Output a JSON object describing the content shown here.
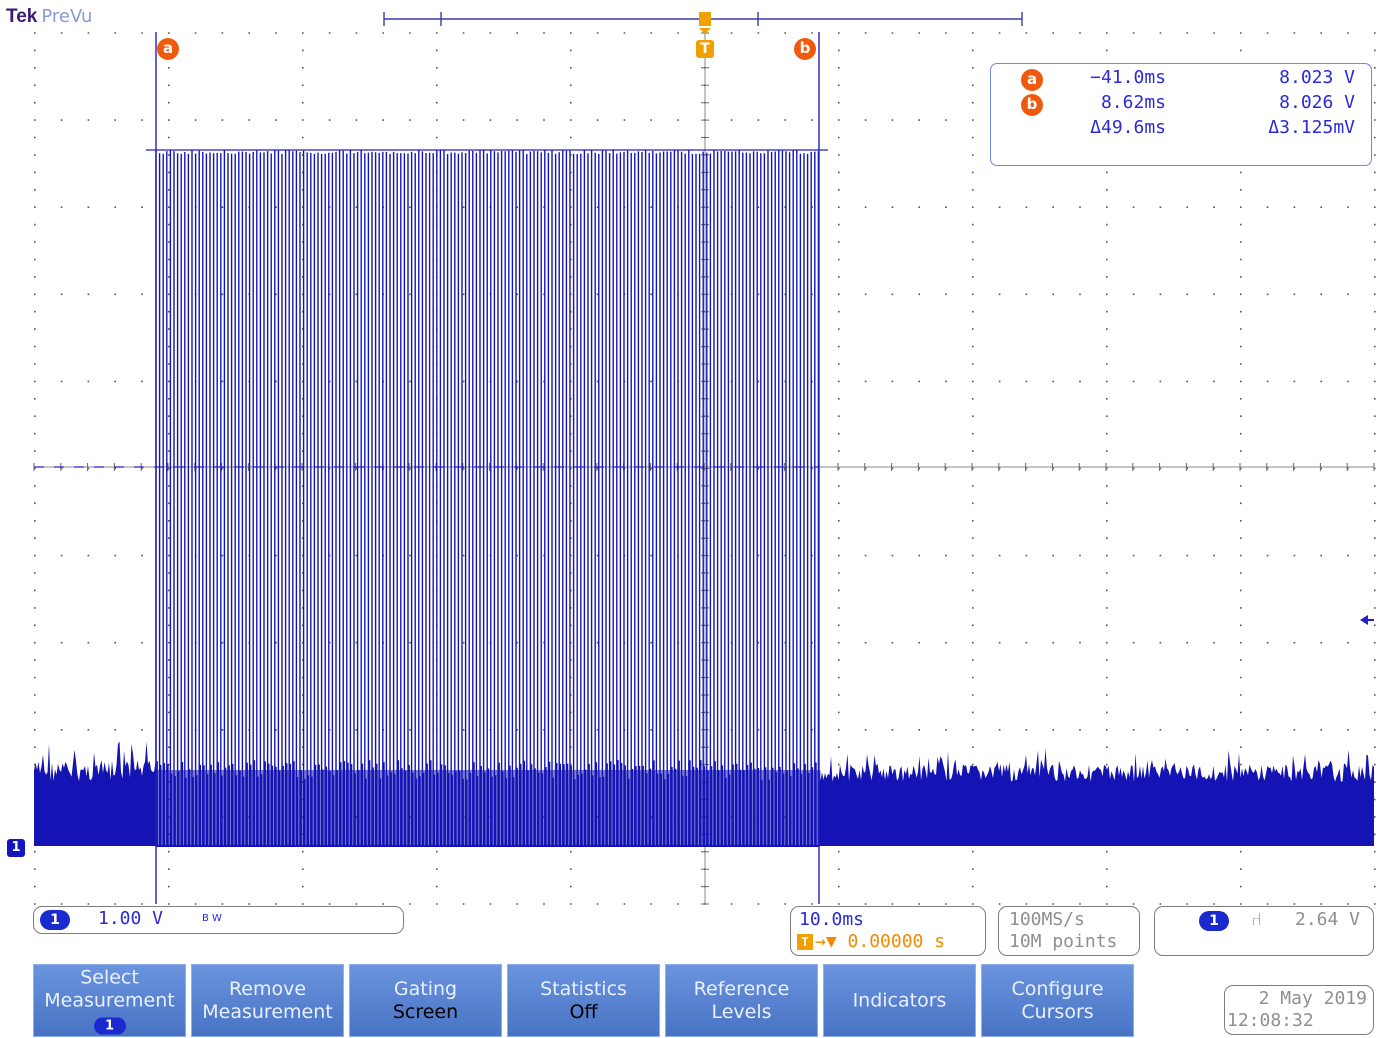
{
  "brand": {
    "make": "Tek",
    "mode": "PreVu"
  },
  "colors": {
    "trace": "#1414b4",
    "cursor_line": "#2020c8",
    "cursor_badge": "#f05a0e",
    "trigger": "#f0a000",
    "grid": "#555555",
    "menu": "#5580d0"
  },
  "cursors": {
    "a": {
      "label": "a",
      "time": "−41.0ms",
      "value": "8.023 V"
    },
    "b": {
      "label": "b",
      "time": "8.62ms",
      "value": "8.026 V"
    },
    "delta": {
      "time": "Δ49.6ms",
      "value": "Δ3.125mV"
    }
  },
  "trigger_marker": "T",
  "channel": {
    "number": "1",
    "volts_per_div": "1.00 V",
    "bandwidth_flag": "B W"
  },
  "timebase": {
    "per_div": "10.0ms",
    "trigger_pos": "0.00000 s",
    "trigger_pos_arrow": "→▼"
  },
  "acquisition": {
    "sample_rate": "100MS/s",
    "record_length": "10M points"
  },
  "trigger": {
    "source": "1",
    "slope": "⑁",
    "level": "2.64 V"
  },
  "menu": [
    {
      "line1": "Select",
      "line2": "Measurement",
      "badge": "1"
    },
    {
      "line1": "Remove",
      "line2": "Measurement"
    },
    {
      "line1": "Gating",
      "value": "Screen"
    },
    {
      "line1": "Statistics",
      "value": "Off"
    },
    {
      "line1": "Reference",
      "line2": "Levels"
    },
    {
      "line1": "Indicators"
    },
    {
      "line1": "Configure",
      "line2": "Cursors"
    }
  ],
  "datetime": {
    "date": "2 May 2019",
    "time": "12:08:32"
  }
}
